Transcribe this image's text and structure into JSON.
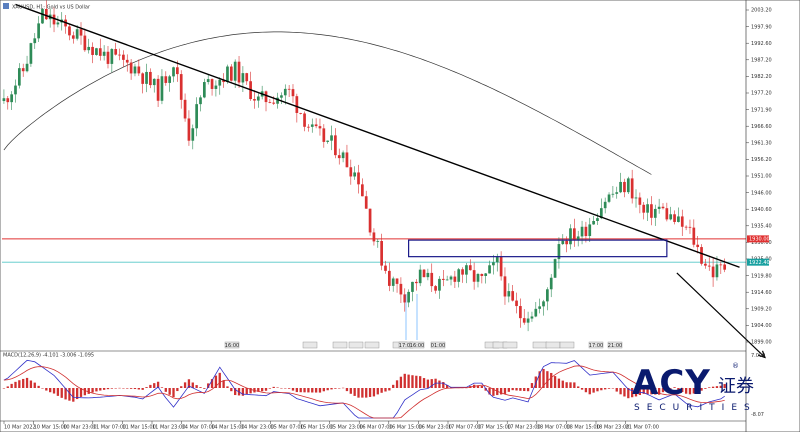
{
  "chart_data": {
    "type": "candlestick",
    "symbol_title": "XAUUSD, H1: Gold vs US Dollar",
    "price_axis_ticks": [
      "2003.20",
      "1997.90",
      "1992.60",
      "1987.20",
      "1982.20",
      "1977.20",
      "1971.90",
      "1966.60",
      "1961.30",
      "1956.20",
      "1951.00",
      "1946.00",
      "1940.60",
      "1935.40",
      "1930.00",
      "1925.00",
      "1919.80",
      "1914.60",
      "1909.20",
      "1904.00",
      "1899.00"
    ],
    "price_min": 1897.0,
    "price_max": 2006.0,
    "time_axis_labels": [
      "10 Mar 2022",
      "10 Mar 15:00",
      "10 Mar 23:00",
      "11 Mar 07:00",
      "11 Mar 15:00",
      "11 Mar 23:00",
      "14 Mar 07:00",
      "14 Mar 15:00",
      "14 Mar 23:00",
      "15 Mar 07:00",
      "15 Mar 15:00",
      "15 Mar 23:00",
      "16 Mar 07:00",
      "16 Mar 15:00",
      "16 Mar 23:00",
      "17 Mar 07:00",
      "17 Mar 15:00",
      "17 Mar 23:00",
      "18 Mar 07:00",
      "18 Mar 15:00",
      "18 Mar 23:00",
      "21 Mar 07:00"
    ],
    "price_tags": [
      {
        "label": "1930.00",
        "price": 1930.0,
        "color": "#e03030"
      },
      {
        "label": "1922.40",
        "price": 1922.4,
        "color": "#18a0a0"
      }
    ],
    "horizontal_lines": [
      {
        "price": 1930.0,
        "color": "#e03030"
      },
      {
        "price": 1922.4,
        "color": "#55c8c8"
      }
    ],
    "trendline": {
      "from": {
        "bar": 3,
        "price": 2006.5
      },
      "to": {
        "bar": 181,
        "price": 1924.0
      },
      "color": "#000000"
    },
    "zone_rectangle": {
      "from_bar": 105,
      "to_bar": 172,
      "price_top": 1929.6,
      "price_bottom": 1924.2,
      "color": "#1a1a8a"
    },
    "arrow": {
      "from": {
        "bar": 172,
        "price": 1921.5
      },
      "to": {
        "bar": 185,
        "price": 1898.5
      },
      "color": "#000000"
    },
    "moving_average_color": "#333333",
    "bull_color": "#2e8b57",
    "bear_color": "#d93030",
    "time_tags": [
      "16:00",
      "",
      "",
      "",
      "",
      "",
      "17:00",
      "16:00",
      "01:00",
      "",
      "",
      "",
      "",
      "",
      "",
      "17:00",
      "21:00"
    ],
    "indicator_panel": {
      "label": "MACD(12,26,9) -4.101 -3.006 -1.095",
      "axis_top": "7.009",
      "axis_bottom": "-8.07",
      "macd_color": "#3030c8",
      "signal_color": "#d03030",
      "histogram_color": "#d03030"
    },
    "grid": false,
    "legend": "none"
  },
  "brand": {
    "logo_text": "ACY",
    "cjk_text": "证券",
    "sub_text": "SECURITIES",
    "registered": "®",
    "accent": "#0a1a6e"
  }
}
